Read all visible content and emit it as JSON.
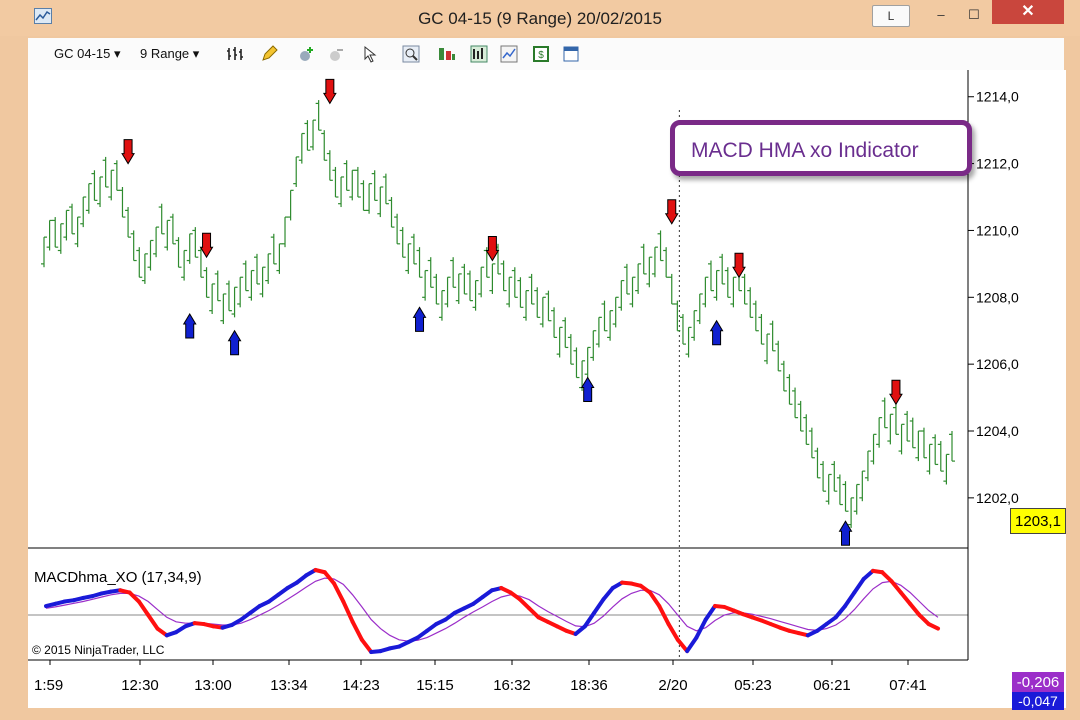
{
  "window": {
    "title": "GC 04-15 (9 Range)  20/02/2015",
    "buttons": {
      "layout": "L",
      "minimize": "–",
      "maximize": "☐",
      "close": "✕"
    }
  },
  "toolbar": {
    "instrument": "GC 04-15",
    "period": "9 Range",
    "icons": [
      "bar-style-icon",
      "pencil-icon",
      "zoom-in-icon",
      "zoom-out-icon",
      "pointer-icon",
      "search-icon",
      "strategy-icon",
      "indicators-icon",
      "chart-properties-icon",
      "data-box-icon",
      "layout-icon"
    ]
  },
  "callout": {
    "text": "MACD HMA xo Indicator"
  },
  "chart_data": [
    {
      "type": "ohlc-range",
      "y_axis": {
        "ticks": [
          "1214,0",
          "1212,0",
          "1210,0",
          "1208,0",
          "1206,0",
          "1204,0",
          "1202,0"
        ],
        "ylim": [
          1200.5,
          1214.8
        ]
      },
      "last_price": "1203,1",
      "bar_color": "#2e8b2e",
      "close_series": [
        1209.8,
        1210.3,
        1209.5,
        1210.2,
        1210.6,
        1209.9,
        1210.4,
        1211.0,
        1211.4,
        1210.9,
        1211.6,
        1211.3,
        1211.8,
        1211.2,
        1210.4,
        1209.8,
        1209.1,
        1208.6,
        1209.3,
        1209.7,
        1210.1,
        1209.9,
        1210.3,
        1209.6,
        1208.9,
        1209.4,
        1209.9,
        1209.2,
        1208.6,
        1208.0,
        1208.4,
        1207.9,
        1208.1,
        1207.6,
        1208.3,
        1208.6,
        1208.2,
        1208.8,
        1208.4,
        1208.9,
        1209.3,
        1209.0,
        1209.6,
        1210.4,
        1211.2,
        1212.2,
        1212.9,
        1212.4,
        1213.3,
        1213.0,
        1212.1,
        1211.5,
        1211.0,
        1211.6,
        1211.2,
        1211.8,
        1211.0,
        1210.6,
        1211.4,
        1210.9,
        1211.3,
        1210.8,
        1210.1,
        1209.6,
        1209.2,
        1209.6,
        1209.0,
        1208.6,
        1208.8,
        1208.3,
        1207.8,
        1208.2,
        1208.6,
        1208.3,
        1208.7,
        1208.1,
        1207.9,
        1208.5,
        1208.9,
        1208.6,
        1209.0,
        1208.7,
        1208.2,
        1208.6,
        1208.0,
        1207.7,
        1208.2,
        1207.8,
        1207.4,
        1208.0,
        1207.3,
        1206.8,
        1207.1,
        1206.5,
        1206.0,
        1205.6,
        1206.1,
        1206.5,
        1207.0,
        1207.4,
        1207.0,
        1207.6,
        1208.0,
        1208.5,
        1208.1,
        1208.6,
        1209.0,
        1208.7,
        1209.2,
        1209.5,
        1209.1,
        1208.6,
        1207.8,
        1207.0,
        1206.6,
        1207.1,
        1207.6,
        1208.1,
        1208.6,
        1208.2,
        1208.8,
        1208.4,
        1208.0,
        1208.6,
        1208.2,
        1207.8,
        1207.4,
        1207.0,
        1206.6,
        1206.9,
        1206.4,
        1205.8,
        1205.2,
        1204.8,
        1204.4,
        1204.0,
        1203.6,
        1203.2,
        1202.6,
        1202.2,
        1202.7,
        1202.2,
        1201.8,
        1201.6,
        1202.0,
        1202.4,
        1202.8,
        1203.4,
        1203.9,
        1204.4,
        1204.1,
        1204.5,
        1203.9,
        1204.2,
        1203.7,
        1203.5,
        1204.0,
        1203.2,
        1203.6,
        1203.0,
        1202.8,
        1203.3,
        1203.1
      ],
      "sell_arrows": [
        {
          "bar": 15,
          "price": 1212.0
        },
        {
          "bar": 29,
          "price": 1209.2
        },
        {
          "bar": 51,
          "price": 1213.8
        },
        {
          "bar": 80,
          "price": 1209.1
        },
        {
          "bar": 112,
          "price": 1210.2
        },
        {
          "bar": 124,
          "price": 1208.6
        },
        {
          "bar": 152,
          "price": 1204.8
        }
      ],
      "buy_arrows": [
        {
          "bar": 26,
          "price": 1207.5
        },
        {
          "bar": 34,
          "price": 1207.0
        },
        {
          "bar": 67,
          "price": 1207.7
        },
        {
          "bar": 97,
          "price": 1205.6
        },
        {
          "bar": 120,
          "price": 1207.3
        },
        {
          "bar": 143,
          "price": 1201.3
        }
      ]
    },
    {
      "type": "line",
      "title": "MACDhma_XO (17,34,9)",
      "values": [
        {
          "label": "-0,206",
          "color": "#9b2ec9"
        },
        {
          "label": "-0,047",
          "color": "#1a1ad8"
        }
      ],
      "macd": [
        0.2,
        0.25,
        0.3,
        0.33,
        0.38,
        0.42,
        0.48,
        0.52,
        0.55,
        0.5,
        0.3,
        0.0,
        -0.3,
        -0.45,
        -0.38,
        -0.25,
        -0.18,
        -0.2,
        -0.25,
        -0.28,
        -0.22,
        -0.1,
        0.05,
        0.2,
        0.3,
        0.45,
        0.6,
        0.72,
        0.88,
        1.0,
        0.95,
        0.7,
        0.3,
        -0.15,
        -0.55,
        -0.82,
        -0.8,
        -0.74,
        -0.7,
        -0.6,
        -0.5,
        -0.35,
        -0.2,
        -0.1,
        0.05,
        0.15,
        0.25,
        0.4,
        0.55,
        0.6,
        0.5,
        0.35,
        0.15,
        -0.05,
        -0.15,
        -0.25,
        -0.35,
        -0.42,
        -0.25,
        0.05,
        0.35,
        0.6,
        0.72,
        0.7,
        0.65,
        0.5,
        0.2,
        -0.2,
        -0.55,
        -0.8,
        -0.5,
        -0.1,
        0.2,
        0.18,
        0.1,
        0.02,
        -0.05,
        -0.12,
        -0.2,
        -0.28,
        -0.35,
        -0.4,
        -0.45,
        -0.35,
        -0.2,
        -0.05,
        0.2,
        0.5,
        0.8,
        0.98,
        0.95,
        0.75,
        0.5,
        0.25,
        0.0,
        -0.2,
        -0.3
      ],
      "signal": [
        0.15,
        0.18,
        0.22,
        0.26,
        0.3,
        0.35,
        0.4,
        0.45,
        0.48,
        0.48,
        0.42,
        0.3,
        0.12,
        -0.05,
        -0.15,
        -0.18,
        -0.18,
        -0.18,
        -0.2,
        -0.22,
        -0.22,
        -0.18,
        -0.1,
        0.0,
        0.1,
        0.22,
        0.35,
        0.48,
        0.62,
        0.75,
        0.82,
        0.8,
        0.68,
        0.45,
        0.18,
        -0.1,
        -0.3,
        -0.45,
        -0.55,
        -0.58,
        -0.56,
        -0.5,
        -0.4,
        -0.3,
        -0.18,
        -0.05,
        0.07,
        0.18,
        0.3,
        0.4,
        0.45,
        0.42,
        0.34,
        0.2,
        0.08,
        -0.03,
        -0.14,
        -0.24,
        -0.26,
        -0.18,
        -0.02,
        0.18,
        0.36,
        0.48,
        0.55,
        0.55,
        0.45,
        0.25,
        0.0,
        -0.25,
        -0.35,
        -0.28,
        -0.12,
        0.0,
        0.05,
        0.05,
        0.02,
        -0.03,
        -0.08,
        -0.14,
        -0.2,
        -0.26,
        -0.32,
        -0.34,
        -0.3,
        -0.22,
        -0.08,
        0.12,
        0.36,
        0.58,
        0.72,
        0.75,
        0.66,
        0.5,
        0.3,
        0.1,
        -0.05
      ]
    }
  ],
  "x_axis": {
    "ticks": [
      "1:59",
      "12:30",
      "13:00",
      "13:34",
      "14:23",
      "15:15",
      "16:32",
      "18:36",
      "2/20",
      "05:23",
      "06:21",
      "07:41"
    ]
  },
  "copyright": "© 2015 NinjaTrader, LLC"
}
